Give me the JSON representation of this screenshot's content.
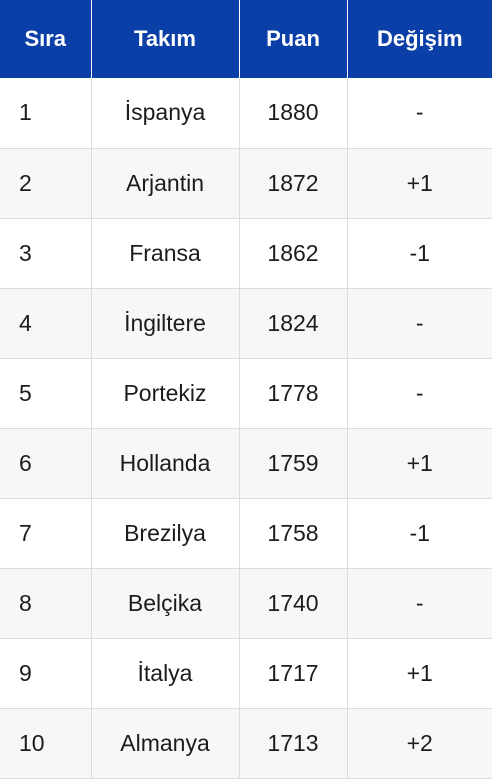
{
  "table": {
    "headers": [
      "Sıra",
      "Takım",
      "Puan",
      "Değişim"
    ],
    "rows": [
      {
        "rank": "1",
        "team": "İspanya",
        "points": "1880",
        "change": "-"
      },
      {
        "rank": "2",
        "team": "Arjantin",
        "points": "1872",
        "change": "+1"
      },
      {
        "rank": "3",
        "team": "Fransa",
        "points": "1862",
        "change": "-1"
      },
      {
        "rank": "4",
        "team": "İngiltere",
        "points": "1824",
        "change": "-"
      },
      {
        "rank": "5",
        "team": "Portekiz",
        "points": "1778",
        "change": "-"
      },
      {
        "rank": "6",
        "team": "Hollanda",
        "points": "1759",
        "change": "+1"
      },
      {
        "rank": "7",
        "team": "Brezilya",
        "points": "1758",
        "change": "-1"
      },
      {
        "rank": "8",
        "team": "Belçika",
        "points": "1740",
        "change": "-"
      },
      {
        "rank": "9",
        "team": "İtalya",
        "points": "1717",
        "change": "+1"
      },
      {
        "rank": "10",
        "team": "Almanya",
        "points": "1713",
        "change": "+2"
      }
    ]
  },
  "colors": {
    "header_bg": "#0b3fa8",
    "header_text": "#ffffff",
    "row_alt_bg": "#f7f7f7",
    "border": "#dcdcdc"
  }
}
